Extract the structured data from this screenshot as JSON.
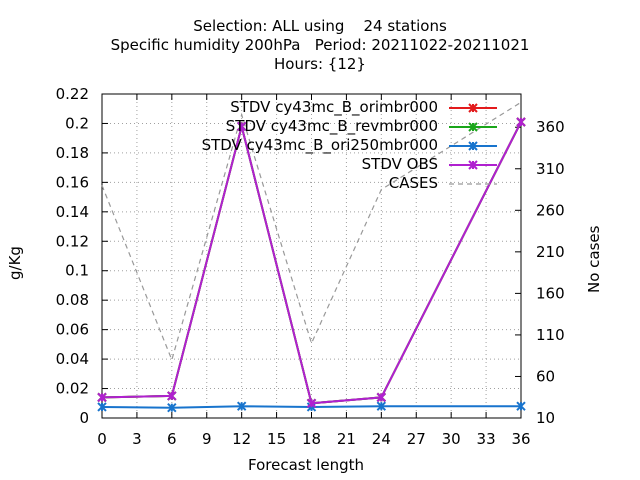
{
  "chart_data": {
    "type": "line",
    "title_lines": [
      "Selection: ALL using    24 stations",
      "Specific humidity 200hPa   Period: 20211022-20211021",
      "Hours: {12}"
    ],
    "xlabel": "Forecast length",
    "ylabel": "g/Kg",
    "y2label": "No cases",
    "x_ticks": [
      0,
      3,
      6,
      9,
      12,
      15,
      18,
      21,
      24,
      27,
      30,
      33,
      36
    ],
    "y_ticks": [
      "0",
      "0.02",
      "0.04",
      "0.06",
      "0.08",
      "0.1",
      "0.12",
      "0.14",
      "0.16",
      "0.18",
      "0.2",
      "0.22"
    ],
    "y2_ticks": [
      "10",
      "60",
      "110",
      "160",
      "210",
      "260",
      "310",
      "360"
    ],
    "xlim": [
      0,
      36
    ],
    "ylim": [
      0,
      0.22
    ],
    "y2lim": [
      10,
      400
    ],
    "grid": true,
    "legend_position": "top-right",
    "series": [
      {
        "name": "STDV cy43mc_B_orimbr000",
        "color": "#e31a1c",
        "marker": "x",
        "axis": "y1",
        "x": [
          0,
          6,
          12,
          18,
          24,
          36
        ],
        "values": [
          0.014,
          0.015,
          0.198,
          0.01,
          0.014,
          0.201
        ]
      },
      {
        "name": "STDV cy43mc_B_revmbr000",
        "color": "#1aa61a",
        "marker": "x",
        "axis": "y1",
        "x": [
          0,
          6,
          12,
          18,
          24,
          36
        ],
        "values": [
          0.014,
          0.015,
          0.198,
          0.01,
          0.014,
          0.201
        ]
      },
      {
        "name": "STDV cy43mc_B_ori250mbr000",
        "color": "#1874cd",
        "marker": "x",
        "axis": "y1",
        "x": [
          0,
          6,
          12,
          18,
          24,
          36
        ],
        "values": [
          0.0075,
          0.007,
          0.008,
          0.0075,
          0.008,
          0.008
        ]
      },
      {
        "name": "STDV OBS",
        "color": "#b020d0",
        "marker": "x",
        "axis": "y1",
        "x": [
          0,
          6,
          12,
          18,
          24,
          36
        ],
        "values": [
          0.014,
          0.015,
          0.198,
          0.01,
          0.014,
          0.201
        ]
      },
      {
        "name": "CASES",
        "color": "#999999",
        "marker": "none",
        "dashed": true,
        "axis": "y2",
        "x": [
          0,
          6,
          12,
          18,
          24,
          36
        ],
        "values": [
          290,
          80,
          375,
          100,
          285,
          390
        ]
      }
    ]
  }
}
